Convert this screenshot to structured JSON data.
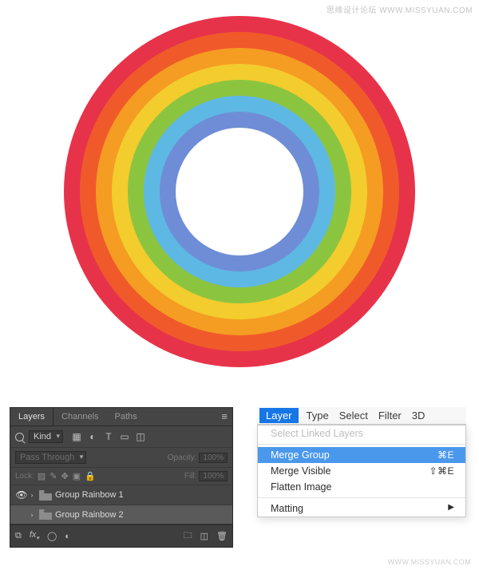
{
  "watermark": {
    "top": "思缘设计论坛   WWW.MISSYUAN.COM",
    "bottom": "WWW.MISSYUAN.COM"
  },
  "rainbow": {
    "outer_diameter": 440,
    "ring_thickness": 20,
    "colors": [
      "#e7334a",
      "#f05a2a",
      "#f59c23",
      "#f3cc2d",
      "#8bc53f",
      "#5eb8e4",
      "#6f8dd6"
    ]
  },
  "layers_panel": {
    "tabs": {
      "layers": "Layers",
      "channels": "Channels",
      "paths": "Paths"
    },
    "filter": {
      "kind": "Kind"
    },
    "blend": {
      "mode": "Pass Through",
      "opacity_label": "Opacity:",
      "opacity_value": "100%"
    },
    "lock": {
      "label": "Lock:",
      "fill_label": "Fill:",
      "fill_value": "100%"
    },
    "groups": [
      {
        "name": "Group Rainbow 1",
        "visible": true,
        "selected": false
      },
      {
        "name": "Group Rainbow 2",
        "visible": false,
        "selected": true
      }
    ]
  },
  "mac_menu": {
    "bar": {
      "layer": "Layer",
      "type": "Type",
      "select": "Select",
      "filter": "Filter",
      "threeD": "3D"
    },
    "items": {
      "select_linked": "Select Linked Layers",
      "merge_group": "Merge Group",
      "merge_group_short": "⌘E",
      "merge_visible": "Merge Visible",
      "merge_visible_short": "⇧⌘E",
      "flatten": "Flatten Image",
      "matting": "Matting"
    }
  }
}
